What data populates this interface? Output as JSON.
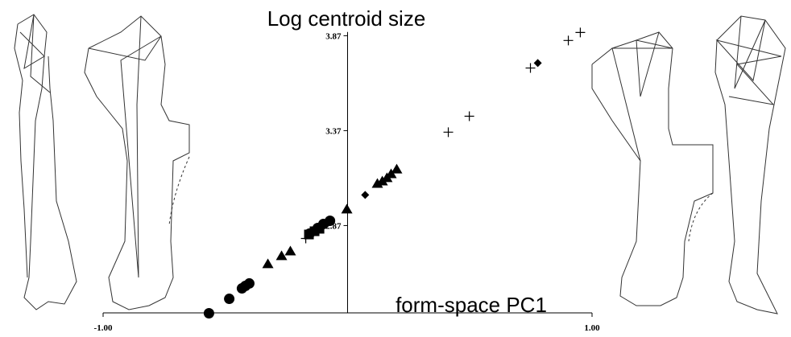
{
  "chart_data": {
    "type": "scatter",
    "title": "Log centroid size",
    "x_label": "form-space PC1",
    "xlim": [
      -1,
      1
    ],
    "xticks": [
      {
        "value": -1,
        "label": "-1.00"
      },
      {
        "value": 1,
        "label": "1.00"
      }
    ],
    "ylim": [
      2.41,
      3.89
    ],
    "yticks": [
      2.87,
      3.37,
      3.87
    ],
    "series": [
      {
        "marker": "circle",
        "color": "#000000",
        "x": [
          -0.567,
          -0.484,
          -0.432,
          -0.418,
          -0.402,
          -0.155,
          -0.122,
          -0.099,
          -0.072
        ],
        "values": [
          2.408,
          2.484,
          2.539,
          2.552,
          2.565,
          2.828,
          2.857,
          2.878,
          2.895
        ]
      },
      {
        "marker": "square",
        "color": "#000000",
        "x": [
          -0.158,
          -0.135,
          -0.115
        ],
        "values": [
          2.823,
          2.84,
          2.853
        ]
      },
      {
        "marker": "triangle",
        "color": "#000000",
        "x": [
          -0.326,
          -0.27,
          -0.234,
          -0.003,
          0.122,
          0.142,
          0.161,
          0.178,
          0.201
        ],
        "values": [
          2.667,
          2.709,
          2.734,
          2.955,
          3.09,
          3.103,
          3.12,
          3.141,
          3.166
        ]
      },
      {
        "marker": "diamond",
        "color": "#000000",
        "x": [
          0.072,
          0.778
        ],
        "values": [
          3.031,
          3.726
        ]
      },
      {
        "marker": "plus",
        "color": "#000000",
        "x": [
          -0.171,
          0.412,
          0.498,
          0.748,
          0.903,
          0.952
        ],
        "values": [
          2.802,
          3.362,
          3.446,
          3.7,
          3.845,
          3.887
        ]
      }
    ]
  }
}
